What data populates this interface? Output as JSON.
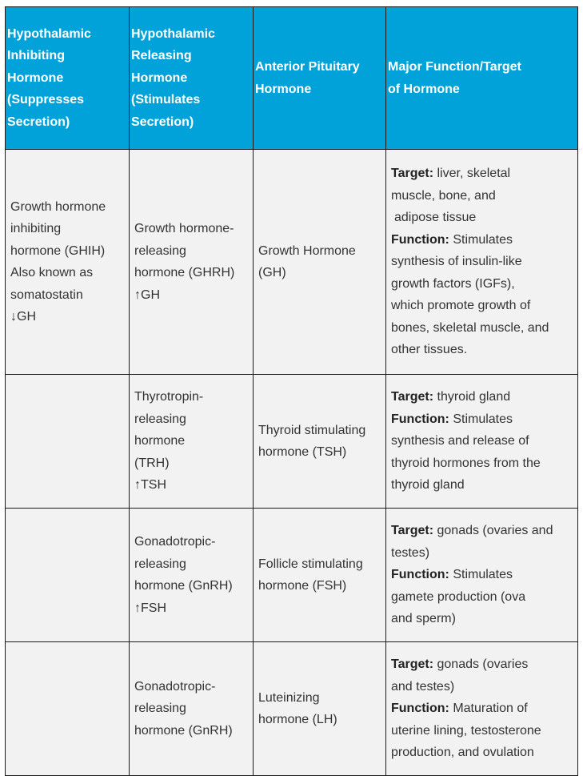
{
  "headers": {
    "col1": [
      "Hypothalamic",
      "Inhibiting",
      "Hormone",
      "(Suppresses",
      "Secretion)"
    ],
    "col2": [
      "Hypothalamic",
      "Releasing",
      "Hormone",
      "(Stimulates",
      "Secretion)"
    ],
    "col3": [
      "Anterior Pituitary",
      "Hormone"
    ],
    "col4": [
      "Major Function/Target",
      "of Hormone"
    ]
  },
  "rows": [
    {
      "inhibiting": [
        "Growth hormone",
        "inhibiting",
        "hormone (GHIH)",
        "Also known as",
        "somatostatin",
        "↓GH"
      ],
      "releasing": [
        "Growth hormone-",
        "releasing",
        "hormone (GHRH)",
        "↑GH"
      ],
      "pituitary": [
        "Growth Hormone",
        "(GH)"
      ],
      "target_label": "Target:",
      "target_lines": [
        " liver, skeletal",
        "muscle, bone, and",
        " adipose tissue"
      ],
      "function_label": "Function:",
      "function_lines": [
        " Stimulates",
        "synthesis of insulin-like",
        "growth factors (IGFs),",
        "which promote growth of",
        "bones, skeletal muscle, and",
        "other tissues."
      ]
    },
    {
      "inhibiting": [],
      "releasing": [
        "Thyrotropin-",
        "releasing",
        "hormone",
        "(TRH)",
        "↑TSH"
      ],
      "pituitary": [
        "Thyroid stimulating",
        "hormone (TSH)"
      ],
      "target_label": "Target:",
      "target_lines": [
        " thyroid gland"
      ],
      "function_label": "Function:",
      "function_lines": [
        " Stimulates",
        "synthesis and release of",
        "thyroid hormones from the",
        "thyroid gland"
      ]
    },
    {
      "inhibiting": [],
      "releasing": [
        "Gonadotropic-",
        "releasing",
        "hormone (GnRH)",
        "↑FSH"
      ],
      "pituitary": [
        "Follicle stimulating",
        "hormone (FSH)"
      ],
      "target_label": "Target:",
      "target_lines": [
        " gonads (ovaries and",
        "testes)"
      ],
      "function_label": "Function:",
      "function_lines": [
        " Stimulates",
        "gamete production (ova",
        "and sperm)"
      ]
    },
    {
      "inhibiting": [],
      "releasing": [
        "Gonadotropic-",
        "releasing",
        "hormone (GnRH)"
      ],
      "pituitary": [
        "Luteinizing",
        "hormone (LH)"
      ],
      "target_label": "Target:",
      "target_lines": [
        " gonads (ovaries",
        "and testes)"
      ],
      "function_label": "Function:",
      "function_lines": [
        " Maturation of",
        "uterine lining, testosterone",
        "production, and ovulation"
      ]
    }
  ]
}
